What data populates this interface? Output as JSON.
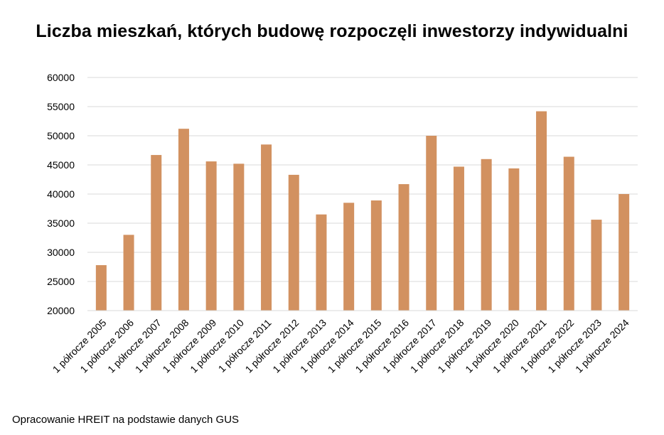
{
  "chart_data": {
    "type": "bar",
    "title": "Liczba mieszkań, których budowę rozpoczęli inwestorzy indywidualni",
    "xlabel": "",
    "ylabel": "",
    "ylim": [
      20000,
      60000
    ],
    "yticks": [
      "20000",
      "25000",
      "30000",
      "35000",
      "40000",
      "45000",
      "50000",
      "55000",
      "60000"
    ],
    "grid": true,
    "legend": "none",
    "bar_color": "#D29160",
    "categories": [
      "1 półrocze 2005",
      "1 półrocze 2006",
      "1 półrocze 2007",
      "1 półrocze 2008",
      "1 półrocze 2009",
      "1 półrocze 2010",
      "1 półrocze 2011",
      "1 półrocze 2012",
      "1 półrocze 2013",
      "1 półrocze 2014",
      "1 półrocze 2015",
      "1 półrocze 2016",
      "1 półrocze 2017",
      "1 półrocze 2018",
      "1 półrocze 2019",
      "1 półrocze 2020",
      "1 półrocze 2021",
      "1 półrocze 2022",
      "1 półrocze 2023",
      "1 półrocze 2024"
    ],
    "values": [
      27800,
      33000,
      46700,
      51200,
      45600,
      45200,
      48500,
      43300,
      36500,
      38500,
      38900,
      41700,
      50000,
      44700,
      46000,
      44400,
      54200,
      46400,
      35600,
      40000
    ]
  },
  "footer": {
    "source": "Opracowanie HREIT na podstawie danych GUS"
  }
}
